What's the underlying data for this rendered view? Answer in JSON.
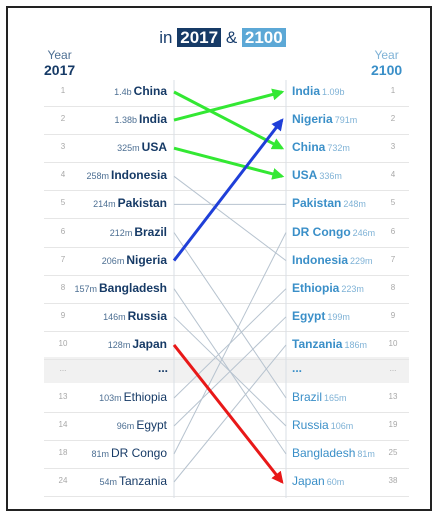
{
  "title": {
    "prefix": "in",
    "year_start": "2017",
    "amp": "&",
    "year_end": "2100"
  },
  "header_left": {
    "label": "Year",
    "year": "2017"
  },
  "header_right": {
    "label": "Year",
    "year": "2100"
  },
  "left_rows": [
    {
      "rank": "1",
      "pop": "1.4b",
      "name": "China"
    },
    {
      "rank": "2",
      "pop": "1.38b",
      "name": "India"
    },
    {
      "rank": "3",
      "pop": "325m",
      "name": "USA"
    },
    {
      "rank": "4",
      "pop": "258m",
      "name": "Indonesia"
    },
    {
      "rank": "5",
      "pop": "214m",
      "name": "Pakistan"
    },
    {
      "rank": "6",
      "pop": "212m",
      "name": "Brazil"
    },
    {
      "rank": "7",
      "pop": "206m",
      "name": "Nigeria"
    },
    {
      "rank": "8",
      "pop": "157m",
      "name": "Bangladesh"
    },
    {
      "rank": "9",
      "pop": "146m",
      "name": "Russia"
    },
    {
      "rank": "10",
      "pop": "128m",
      "name": "Japan"
    }
  ],
  "left_extra": [
    {
      "rank": "13",
      "pop": "103m",
      "name": "Ethiopia"
    },
    {
      "rank": "14",
      "pop": "96m",
      "name": "Egypt"
    },
    {
      "rank": "18",
      "pop": "81m",
      "name": "DR Congo"
    },
    {
      "rank": "24",
      "pop": "54m",
      "name": "Tanzania"
    }
  ],
  "right_rows": [
    {
      "rank": "1",
      "pop": "1.09b",
      "name": "India"
    },
    {
      "rank": "2",
      "pop": "791m",
      "name": "Nigeria"
    },
    {
      "rank": "3",
      "pop": "732m",
      "name": "China"
    },
    {
      "rank": "4",
      "pop": "336m",
      "name": "USA"
    },
    {
      "rank": "5",
      "pop": "248m",
      "name": "Pakistan"
    },
    {
      "rank": "6",
      "pop": "246m",
      "name": "DR Congo"
    },
    {
      "rank": "7",
      "pop": "229m",
      "name": "Indonesia"
    },
    {
      "rank": "8",
      "pop": "223m",
      "name": "Ethiopia"
    },
    {
      "rank": "9",
      "pop": "199m",
      "name": "Egypt"
    },
    {
      "rank": "10",
      "pop": "186m",
      "name": "Tanzania"
    }
  ],
  "right_extra": [
    {
      "rank": "13",
      "pop": "165m",
      "name": "Brazil"
    },
    {
      "rank": "19",
      "pop": "106m",
      "name": "Russia"
    },
    {
      "rank": "25",
      "pop": "81m",
      "name": "Bangladesh"
    },
    {
      "rank": "38",
      "pop": "60m",
      "name": "Japan"
    }
  ],
  "ellipsis": {
    "rank": "...",
    "label": "..."
  },
  "colors": {
    "dark_blue": "#163a66",
    "light_blue": "#3a8fc8",
    "connector_gray": "#b7c3cf",
    "arrow_green": "#33e833",
    "arrow_blue": "#1f3fd8",
    "arrow_red": "#e81818"
  },
  "arrows": [
    {
      "from": "China",
      "to": "China",
      "color": "green"
    },
    {
      "from": "India",
      "to": "India",
      "color": "green"
    },
    {
      "from": "USA",
      "to": "USA",
      "color": "green"
    },
    {
      "from": "Nigeria",
      "to": "Nigeria",
      "color": "blue"
    },
    {
      "from": "Japan",
      "to": "Japan",
      "color": "red"
    }
  ]
}
